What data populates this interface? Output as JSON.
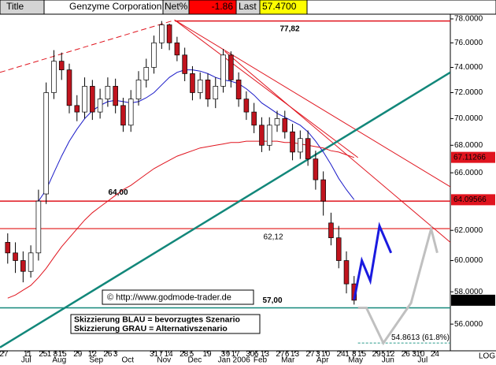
{
  "header": {
    "tab": "Title",
    "name": "Genzyme Corporation",
    "net_label": "Net%",
    "net_value": -1.86,
    "last_label": "Last",
    "last_value": {
      "value": 57.47,
      "label": "57.4700"
    }
  },
  "chart_data": {
    "type": "candlestick",
    "log_scale": true,
    "ylim": [
      54.4,
      78.4
    ],
    "xlim": [
      -1,
      57.5
    ],
    "yticks": [
      {
        "value": 56,
        "label": "56.0000"
      },
      {
        "value": 58,
        "label": "58.0000"
      },
      {
        "value": 60,
        "label": "60.0000"
      },
      {
        "value": 62,
        "label": "62.0000"
      },
      {
        "value": 66,
        "label": "66.0000"
      },
      {
        "value": 68,
        "label": "68.0000"
      },
      {
        "value": 70,
        "label": "70.0000"
      },
      {
        "value": 72,
        "label": "72.0000"
      },
      {
        "value": 74,
        "label": "74.0000"
      },
      {
        "value": 76,
        "label": "76.0000"
      },
      {
        "value": 78,
        "label": "78.0000"
      }
    ],
    "xticks": [
      {
        "value": 2.4,
        "label": "Jul"
      },
      {
        "value": 6.7,
        "label": "Aug"
      },
      {
        "value": 11.5,
        "label": "Sep"
      },
      {
        "value": 15.6,
        "label": "Oct"
      },
      {
        "value": 20.3,
        "label": "Nov"
      },
      {
        "value": 24.3,
        "label": "Dec"
      },
      {
        "value": 29.4,
        "label": "Jan 2006"
      },
      {
        "value": 32.8,
        "label": "Feb"
      },
      {
        "value": 36.4,
        "label": "Mar"
      },
      {
        "value": 40.9,
        "label": "Apr"
      },
      {
        "value": 45.2,
        "label": "May"
      },
      {
        "value": 49.4,
        "label": "Jun"
      },
      {
        "value": 53.9,
        "label": "Jul"
      }
    ],
    "xday_ticks": [
      {
        "value": -0.5,
        "label": "27"
      },
      {
        "value": 2.6,
        "label": "11"
      },
      {
        "value": 4.6,
        "label": "25"
      },
      {
        "value": 5.4,
        "label": "1"
      },
      {
        "value": 6.2,
        "label": "8"
      },
      {
        "value": 7.1,
        "label": "15"
      },
      {
        "value": 9.1,
        "label": "29"
      },
      {
        "value": 11.0,
        "label": "12"
      },
      {
        "value": 13.0,
        "label": "26"
      },
      {
        "value": 14.0,
        "label": "3"
      },
      {
        "value": 19.0,
        "label": "31"
      },
      {
        "value": 19.9,
        "label": "7"
      },
      {
        "value": 20.9,
        "label": "14"
      },
      {
        "value": 22.9,
        "label": "28"
      },
      {
        "value": 23.9,
        "label": "5"
      },
      {
        "value": 25.9,
        "label": "19"
      },
      {
        "value": 28.0,
        "label": "3"
      },
      {
        "value": 28.6,
        "label": "9"
      },
      {
        "value": 29.6,
        "label": "17"
      },
      {
        "value": 31.5,
        "label": "30"
      },
      {
        "value": 32.3,
        "label": "6"
      },
      {
        "value": 33.4,
        "label": "13"
      },
      {
        "value": 35.4,
        "label": "27"
      },
      {
        "value": 36.3,
        "label": "6"
      },
      {
        "value": 37.3,
        "label": "13"
      },
      {
        "value": 39.3,
        "label": "27"
      },
      {
        "value": 40.3,
        "label": "3"
      },
      {
        "value": 41.3,
        "label": "10"
      },
      {
        "value": 43.3,
        "label": "24"
      },
      {
        "value": 44.1,
        "label": "1"
      },
      {
        "value": 45.0,
        "label": "8"
      },
      {
        "value": 46.0,
        "label": "15"
      },
      {
        "value": 47.9,
        "label": "29"
      },
      {
        "value": 48.8,
        "label": "5"
      },
      {
        "value": 49.7,
        "label": "12"
      },
      {
        "value": 51.7,
        "label": "26"
      },
      {
        "value": 52.8,
        "label": "3"
      },
      {
        "value": 53.6,
        "label": "10"
      },
      {
        "value": 55.5,
        "label": "24"
      }
    ],
    "x": [
      0,
      1,
      2,
      3,
      4,
      5,
      6,
      7,
      8,
      9,
      10,
      11,
      12,
      13,
      14,
      15,
      16,
      17,
      18,
      19,
      20,
      21,
      22,
      23,
      24,
      25,
      26,
      27,
      28,
      29,
      30,
      31,
      32,
      33,
      34,
      35,
      36,
      37,
      38,
      39,
      40,
      41,
      42,
      43,
      44,
      45
    ],
    "open": [
      61.2,
      60.5,
      60.0,
      59.3,
      60.5,
      64.5,
      72.0,
      74.5,
      73.8,
      71.0,
      70.5,
      72.5,
      70.5,
      71.5,
      72.5,
      71.0,
      69.5,
      71.5,
      73.0,
      74.0,
      76.0,
      77.5,
      76.0,
      75.0,
      73.5,
      72.0,
      73.0,
      71.5,
      72.5,
      75.0,
      73.0,
      71.5,
      70.5,
      69.5,
      68.0,
      69.5,
      70.0,
      69.0,
      67.5,
      68.5,
      67.0,
      65.5,
      62.5,
      61.5,
      60.0,
      58.5
    ],
    "high": [
      61.8,
      61.2,
      60.6,
      61.0,
      64.8,
      72.8,
      75.4,
      75.2,
      74.3,
      71.8,
      73.2,
      73.0,
      72.3,
      73.2,
      73.1,
      71.6,
      72.2,
      73.7,
      74.7,
      76.6,
      77.82,
      77.6,
      76.5,
      75.6,
      74.1,
      73.6,
      73.5,
      73.2,
      75.5,
      75.3,
      73.6,
      72.1,
      71.2,
      70.1,
      70.1,
      70.6,
      70.6,
      69.6,
      69.1,
      69.1,
      67.6,
      66.1,
      63.2,
      62.3,
      60.6,
      59.0
    ],
    "low": [
      59.8,
      59.2,
      58.6,
      58.9,
      60.0,
      63.8,
      71.5,
      73.0,
      70.4,
      69.8,
      70.0,
      69.9,
      70.0,
      70.9,
      70.4,
      69.0,
      69.0,
      71.0,
      72.4,
      73.5,
      75.5,
      75.4,
      74.5,
      72.9,
      71.4,
      71.5,
      70.9,
      70.8,
      72.0,
      72.4,
      70.9,
      69.9,
      68.9,
      67.5,
      67.6,
      69.0,
      68.5,
      66.9,
      67.0,
      66.5,
      64.8,
      63.0,
      61.0,
      59.5,
      57.9,
      57.2
    ],
    "close": [
      60.5,
      60.0,
      59.3,
      60.5,
      64.0,
      72.0,
      74.5,
      73.8,
      71.0,
      70.5,
      72.5,
      70.5,
      71.5,
      72.5,
      71.0,
      69.5,
      71.5,
      73.0,
      74.0,
      76.0,
      77.5,
      76.0,
      75.0,
      73.5,
      72.0,
      73.0,
      71.5,
      72.5,
      75.0,
      73.0,
      71.5,
      70.5,
      69.5,
      68.0,
      69.5,
      70.0,
      69.0,
      67.5,
      68.5,
      67.0,
      65.5,
      64.0,
      61.5,
      60.0,
      58.5,
      57.47
    ],
    "up_color": "#ffffff",
    "down_color": "#c0141e",
    "series": [
      {
        "color": "#1a1ac8",
        "values": [
          null,
          null,
          null,
          null,
          64.0,
          64.8,
          66.0,
          67.2,
          68.3,
          69.2,
          70.0,
          70.6,
          71.0,
          71.3,
          71.4,
          71.3,
          71.2,
          71.3,
          71.6,
          72.0,
          72.6,
          73.2,
          73.6,
          73.8,
          73.8,
          73.7,
          73.5,
          73.2,
          73.0,
          72.9,
          72.7,
          72.3,
          71.8,
          71.2,
          70.8,
          70.4,
          70.1,
          69.8,
          69.5,
          69.0,
          68.3,
          67.5,
          66.6,
          65.6,
          64.8,
          64.1
        ]
      },
      {
        "color": "#e0141e",
        "values": [
          57.6,
          57.8,
          58.1,
          58.4,
          58.9,
          59.5,
          60.2,
          60.9,
          61.5,
          62.1,
          62.7,
          63.2,
          63.6,
          64.0,
          64.4,
          64.8,
          65.1,
          65.5,
          65.9,
          66.3,
          66.6,
          66.9,
          67.2,
          67.4,
          67.6,
          67.8,
          67.9,
          68.0,
          68.1,
          68.2,
          68.2,
          68.3,
          68.3,
          68.3,
          68.3,
          68.3,
          68.2,
          68.2,
          68.1,
          68.0,
          67.9,
          67.8,
          67.6,
          67.5,
          67.3,
          67.1
        ]
      }
    ],
    "trendlines": [
      {
        "color": "#e0141e",
        "dashed": true,
        "x": [
          -1,
          21.7
        ],
        "values": [
          73.6,
          77.9
        ]
      },
      {
        "color": "#e0141e",
        "x": [
          21.7,
          57.5
        ],
        "values": [
          77.9,
          65.0
        ]
      },
      {
        "color": "#e0141e",
        "x": [
          21.7,
          45.5
        ],
        "values": [
          77.9,
          67.1
        ]
      },
      {
        "color": "#e0141e",
        "x": [
          28.2,
          57.5
        ],
        "values": [
          75.3,
          61.2
        ]
      },
      {
        "color": "#12877a",
        "x": [
          -1,
          57.5
        ],
        "values": [
          54.6,
          73.6
        ]
      }
    ],
    "levels": [
      {
        "value": 77.82,
        "label": "77,82",
        "color": "#e0141e",
        "from": 21.7
      },
      {
        "value": 64.0,
        "label": "64,00",
        "color": "#e0141e"
      },
      {
        "value": 62.12,
        "label": "62,12",
        "color": "#e85050"
      },
      {
        "value": 57.0,
        "label": "57,00",
        "color": "#12877a"
      }
    ],
    "fib": {
      "value": 54.8613,
      "label": "54.8613 (61.8%)",
      "color": "#2a9a8a",
      "from": 45.5
    },
    "projections": [
      {
        "color": "#1a1ae0",
        "x": [
          45,
          46,
          47.1,
          48.3,
          49.8
        ],
        "values": [
          57.5,
          60.0,
          58.7,
          62.3,
          60.5
        ]
      },
      {
        "color": "#c0c0c0",
        "x": [
          45.5,
          46.6,
          48.8,
          52.4,
          55.0,
          55.8
        ],
        "values": [
          57.0,
          57.0,
          54.86,
          57.3,
          62.1,
          60.5
        ]
      }
    ],
    "price_labels": [
      {
        "value": 67.11266,
        "color": "#e0141e"
      },
      {
        "value": 64.09566,
        "color": "#e0141e"
      },
      {
        "value": 57.47,
        "label": "57.4700",
        "color": "#000000"
      }
    ],
    "copyright": "© http://www.godmode-trader.de",
    "notes": [
      "Skizzierung BLAU = bevorzugtes Szenario",
      "Skizzierung GRAU = Alternativszenario"
    ],
    "scale_label": "LOG"
  }
}
